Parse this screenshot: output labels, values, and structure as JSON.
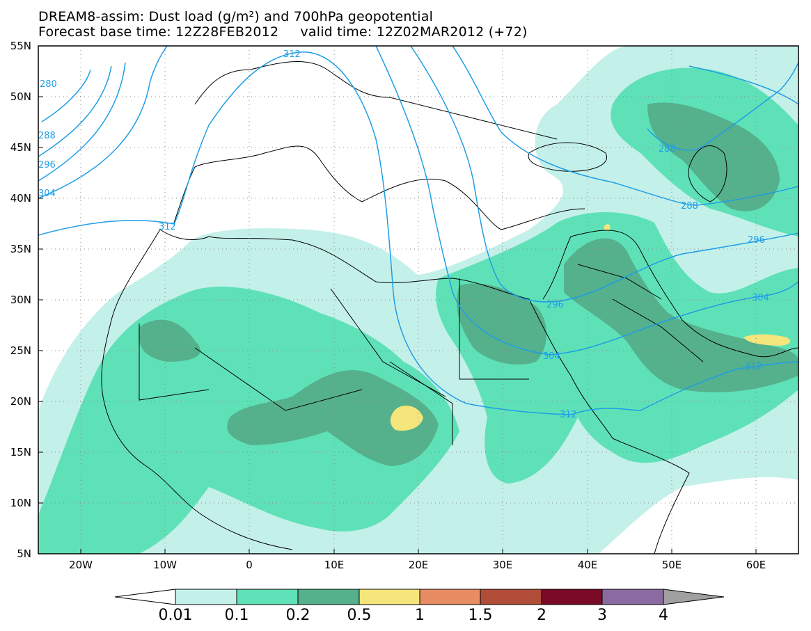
{
  "title": {
    "line1": "DREAM8-assim: Dust load (g/m²) and 700hPa geopotential",
    "line2": "Forecast base time: 12Z28FEB2012     valid time: 12Z02MAR2012 (+72)"
  },
  "axes": {
    "lat_labels": [
      "55N",
      "50N",
      "45N",
      "40N",
      "35N",
      "30N",
      "25N",
      "20N",
      "15N",
      "10N",
      "5N"
    ],
    "lon_labels": [
      "20W",
      "10W",
      "0",
      "10E",
      "20E",
      "30E",
      "40E",
      "50E",
      "60E"
    ]
  },
  "contours": {
    "labels": [
      "280",
      "288",
      "296",
      "304",
      "312",
      "312",
      "288",
      "288",
      "296",
      "296",
      "304",
      "304",
      "312",
      "312"
    ]
  },
  "colorbar": {
    "levels": [
      "0.01",
      "0.1",
      "0.2",
      "0.5",
      "1",
      "1.5",
      "2",
      "3",
      "4"
    ],
    "colors": [
      "#ffffff",
      "#c4f0ea",
      "#5fe1b8",
      "#55b08c",
      "#f4e67a",
      "#e88c64",
      "#b04c38",
      "#7a0a26",
      "#8a6aa0",
      "#a0a0a0"
    ]
  },
  "colors": {
    "contour": "#1e9ee6",
    "dust_low": "#c4f0ea",
    "dust_mid": "#5fe1b8",
    "dust_high": "#55b08c",
    "dust_peak": "#f4e67a"
  }
}
